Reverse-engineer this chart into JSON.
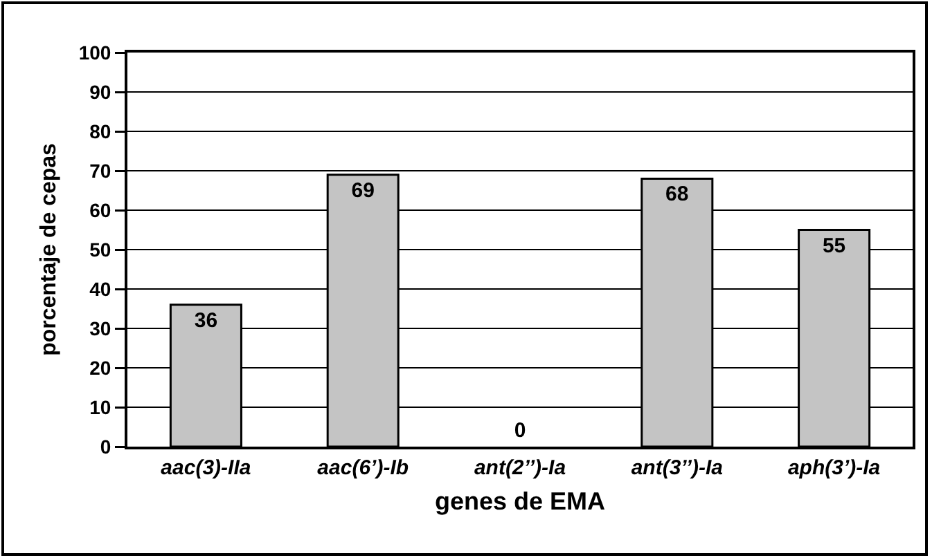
{
  "chart_data": {
    "type": "bar",
    "categories": [
      "aac(3)-IIa",
      "aac(6’)-Ib",
      "ant(2’’)-Ia",
      "ant(3’’)-Ia",
      "aph(3’)-Ia"
    ],
    "values": [
      36,
      69,
      0,
      68,
      55
    ],
    "color": "#c4c4c4",
    "xlabel": "genes de EMA",
    "ylabel": "porcentaje de cepas",
    "ylim": [
      0,
      100
    ],
    "yticks": [
      0,
      10,
      20,
      30,
      40,
      50,
      60,
      70,
      80,
      90,
      100
    ],
    "grid": "y",
    "legend": false,
    "data_labels": true
  }
}
